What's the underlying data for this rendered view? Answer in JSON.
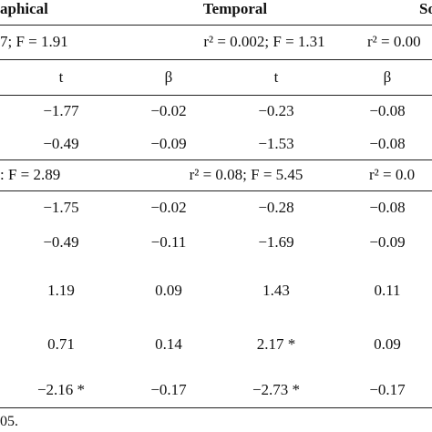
{
  "header": {
    "groups": [
      "aphical",
      "Temporal",
      "So"
    ]
  },
  "model1": {
    "fit": [
      "7; F = 1.91",
      "r² = 0.002; F = 1.31",
      "r² = 0.00"
    ]
  },
  "subheader": [
    "t",
    "β",
    "t",
    "β"
  ],
  "table": {
    "rows": [
      [
        "−1.77",
        "−0.02",
        "−0.23",
        "−0.08"
      ],
      [
        "−0.49",
        "−0.09",
        "−1.53",
        "−0.08"
      ]
    ]
  },
  "model2": {
    "fit": [
      ": F = 2.89",
      "r² = 0.08; F = 5.45",
      "r² = 0.0"
    ]
  },
  "table2": {
    "rows": [
      [
        "−1.75",
        "−0.02",
        "−0.28",
        "−0.08"
      ],
      [
        "−0.49",
        "−0.11",
        "−1.69",
        "−0.09"
      ],
      [
        "1.19",
        "0.09",
        "1.43",
        "0.11"
      ],
      [
        "0.71",
        "0.14",
        "2.17 *",
        "0.09"
      ],
      [
        "−2.16 *",
        "−0.17",
        "−2.73 *",
        "−0.17"
      ]
    ]
  },
  "footnote": "05."
}
